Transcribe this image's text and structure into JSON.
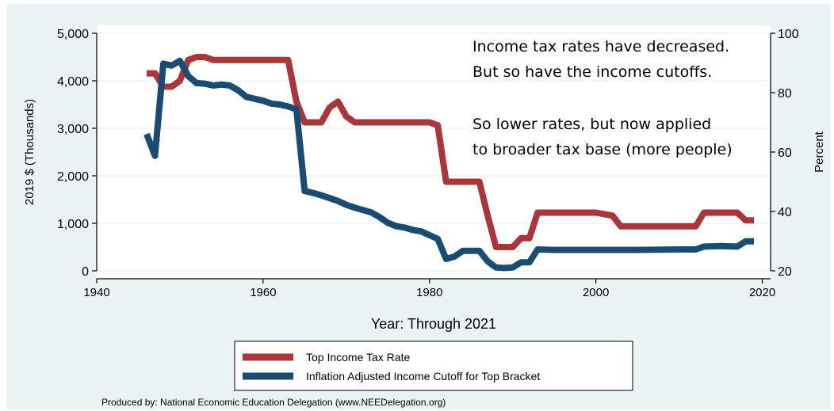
{
  "chart_data": {
    "type": "line",
    "title": "",
    "xlabel": "Year: Through 2021",
    "ylabel": "2019 $ (Thousands)",
    "y2label": "Percent",
    "xlim": [
      1940,
      2021
    ],
    "ylim": [
      0,
      5000
    ],
    "y2lim": [
      20,
      100
    ],
    "x_ticks": [
      "1940",
      "1960",
      "1980",
      "2000",
      "2020"
    ],
    "y_ticks": [
      "0",
      "1,000",
      "2,000",
      "3,000",
      "4,000",
      "5,000"
    ],
    "y2_ticks": [
      "20",
      "40",
      "60",
      "80",
      "100"
    ],
    "grid": true,
    "legend_position": "bottom",
    "series": [
      {
        "name": "Top Income Tax Rate",
        "color": "#a8363a",
        "axis": "right",
        "x": [
          1946,
          1947,
          1948,
          1949,
          1950,
          1951,
          1952,
          1953,
          1954,
          1960,
          1963,
          1964,
          1965,
          1967,
          1968,
          1969,
          1970,
          1971,
          1975,
          1980,
          1981,
          1982,
          1983,
          1986,
          1987,
          1988,
          1990,
          1991,
          1992,
          1993,
          2000,
          2002,
          2003,
          2012,
          2013,
          2017,
          2018,
          2019
        ],
        "values": [
          86.5,
          86.5,
          82,
          82,
          84,
          91,
          92,
          92,
          91,
          91,
          91,
          77,
          70,
          70,
          75,
          77,
          72,
          70,
          70,
          70,
          69,
          50,
          50,
          50,
          38.5,
          28,
          28,
          31,
          31,
          39.6,
          39.6,
          38.6,
          35,
          35,
          39.6,
          39.6,
          37,
          37
        ]
      },
      {
        "name": "Inflation Adjusted Income Cutoff for Top Bracket",
        "color": "#1a4b73",
        "axis": "left",
        "x": [
          1946,
          1947,
          1948,
          1949,
          1950,
          1951,
          1952,
          1953,
          1954,
          1955,
          1956,
          1957,
          1958,
          1959,
          1960,
          1961,
          1962,
          1963,
          1964,
          1965,
          1966,
          1967,
          1968,
          1969,
          1970,
          1971,
          1972,
          1973,
          1974,
          1975,
          1976,
          1977,
          1978,
          1979,
          1980,
          1981,
          1982,
          1983,
          1984,
          1985,
          1986,
          1987,
          1988,
          1989,
          1990,
          1991,
          1992,
          1993,
          1995,
          2000,
          2005,
          2010,
          2012,
          2013,
          2015,
          2017,
          2018,
          2019
        ],
        "values": [
          2880,
          2420,
          4360,
          4320,
          4420,
          4100,
          3950,
          3940,
          3900,
          3920,
          3900,
          3800,
          3660,
          3620,
          3580,
          3520,
          3500,
          3460,
          3400,
          1680,
          1640,
          1590,
          1530,
          1470,
          1390,
          1330,
          1280,
          1230,
          1130,
          1010,
          940,
          910,
          860,
          830,
          750,
          670,
          250,
          300,
          420,
          420,
          420,
          200,
          70,
          60,
          70,
          180,
          180,
          450,
          440,
          440,
          440,
          450,
          450,
          510,
          520,
          510,
          620,
          620
        ]
      }
    ],
    "annotation_lines": [
      "Income tax rates have decreased.",
      "But so have the income cutoffs.",
      "",
      "So lower rates, but now applied",
      "to broader tax base (more people)"
    ]
  },
  "footer": "Produced by: National Economic Education Delegation (www.NEEDelegation.org)"
}
